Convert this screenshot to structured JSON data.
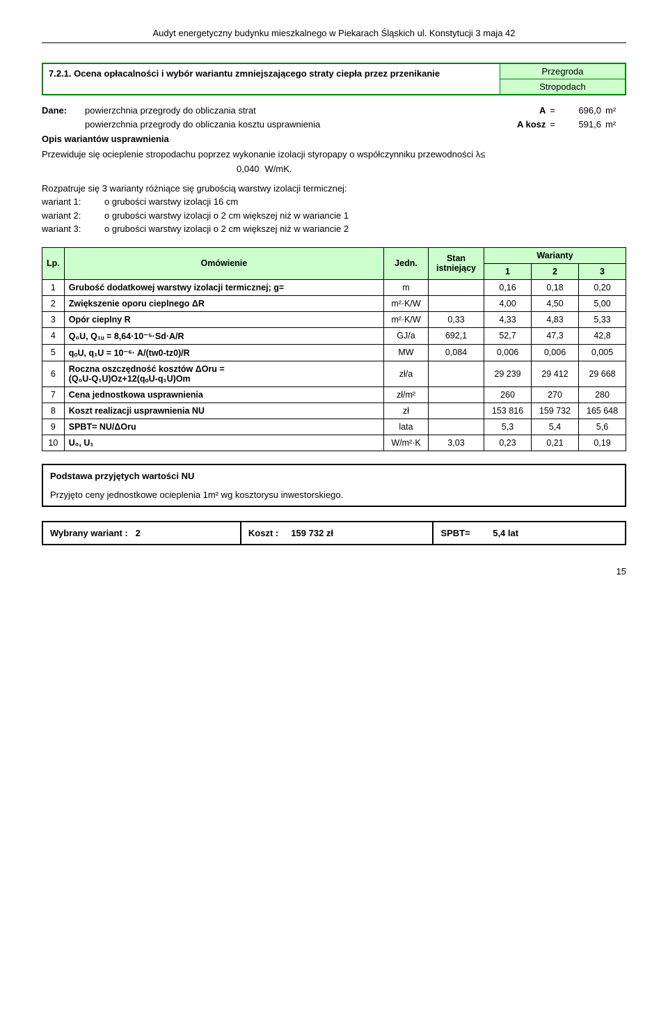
{
  "header": "Audyt energetyczny budynku mieszkalnego w Piekarach Śląskich  ul. Konstytucji 3 maja 42",
  "title": {
    "number": "7.2.1.",
    "text": "Ocena opłacalności i wybór wariantu zmniejszającego straty ciepła przez przenikanie",
    "przegroda_label": "Przegroda",
    "przegroda_value": "Stropodach"
  },
  "dane": {
    "label": "Dane:",
    "rows": [
      {
        "text": "powierzchnia przegrody do obliczania strat",
        "sym": "A",
        "eq": "=",
        "num": "696,0",
        "unit": "m²"
      },
      {
        "text": "powierzchnia przegrody do obliczania kosztu usprawnienia",
        "sym": "A kosz",
        "eq": "=",
        "num": "591,6",
        "unit": "m²"
      }
    ],
    "opis": "Opis wariantów usprawnienia",
    "descr": "Przewiduje się ocieplenie stropodachu poprzez wykonanie izolacji styropapy o współczynniku przewodności λ≤",
    "lambda_val": "0,040",
    "lambda_unit": "W/mK.",
    "var_intro": "Rozpatruje się 3 warianty różniące się grubością warstwy izolacji termicznej:",
    "variants": [
      {
        "lab": "wariant 1:",
        "txt": "o grubości warstwy izolacji 16 cm"
      },
      {
        "lab": "wariant 2:",
        "txt": "o grubości warstwy izolacji o 2 cm większej niż w wariancie 1"
      },
      {
        "lab": "wariant 3:",
        "txt": "o grubości warstwy izolacji o 2 cm większej niż w wariancie 2"
      }
    ]
  },
  "table": {
    "head": {
      "lp": "Lp.",
      "om": "Omówienie",
      "jedn": "Jedn.",
      "stan": "Stan istniejący",
      "warianty": "Warianty",
      "w1": "1",
      "w2": "2",
      "w3": "3"
    },
    "rows": [
      {
        "lp": "1",
        "om": "Grubość dodatkowej warstwy izolacji termicznej; g=",
        "jedn": "m",
        "stan": "",
        "w1": "0,16",
        "w2": "0,18",
        "w3": "0,20"
      },
      {
        "lp": "2",
        "om": "Zwiększenie oporu cieplnego ΔR",
        "jedn": "m²·K/W",
        "stan": "",
        "w1": "4,00",
        "w2": "4,50",
        "w3": "5,00"
      },
      {
        "lp": "3",
        "om": "Opór cieplny R",
        "jedn": "m²·K/W",
        "stan": "0,33",
        "w1": "4,33",
        "w2": "4,83",
        "w3": "5,33"
      },
      {
        "lp": "4",
        "om": "Q₀U, Q₁ᵤ = 8,64·10⁻⁵·Sd·A/R",
        "jedn": "GJ/a",
        "stan": "692,1",
        "w1": "52,7",
        "w2": "47,3",
        "w3": "42,8"
      },
      {
        "lp": "5",
        "om": "qₒU, q₁U = 10⁻⁶· A/(tw0-tz0)/R",
        "jedn": "MW",
        "stan": "0,084",
        "w1": "0,006",
        "w2": "0,006",
        "w3": "0,005"
      },
      {
        "lp": "6",
        "om": "Roczna oszczędność kosztów                              ΔOru =\n(Q₀U-Q₁U)Oz+12(qₒU-q₁U)Om",
        "jedn": "zł/a",
        "stan": "",
        "w1": "29 239",
        "w2": "29 412",
        "w3": "29 668"
      },
      {
        "lp": "7",
        "om": "Cena jednostkowa usprawnienia",
        "jedn": "zł/m²",
        "stan": "",
        "w1": "260",
        "w2": "270",
        "w3": "280"
      },
      {
        "lp": "8",
        "om": "Koszt realizacji usprawnienia  NU",
        "jedn": "zł",
        "stan": "",
        "w1": "153 816",
        "w2": "159 732",
        "w3": "165 648"
      },
      {
        "lp": "9",
        "om": "SPBT= NU/ΔOru",
        "jedn": "lata",
        "stan": "",
        "w1": "5,3",
        "w2": "5,4",
        "w3": "5,6"
      },
      {
        "lp": "10",
        "om": "U₀, U₁",
        "jedn": "W/m²·K",
        "stan": "3,03",
        "w1": "0,23",
        "w2": "0,21",
        "w3": "0,19"
      }
    ]
  },
  "podstawa": {
    "head": "Podstawa przyjętych wartości NU",
    "text": "Przyjęto ceny jednostkowe ocieplenia 1m² wg kosztorysu inwestorskiego."
  },
  "final": {
    "c1a": "Wybrany wariant :",
    "c1b": "2",
    "c2a": "Koszt :",
    "c2b": "159 732 zł",
    "c3a": "SPBT=",
    "c3b": "5,4 lat"
  },
  "page": "15"
}
